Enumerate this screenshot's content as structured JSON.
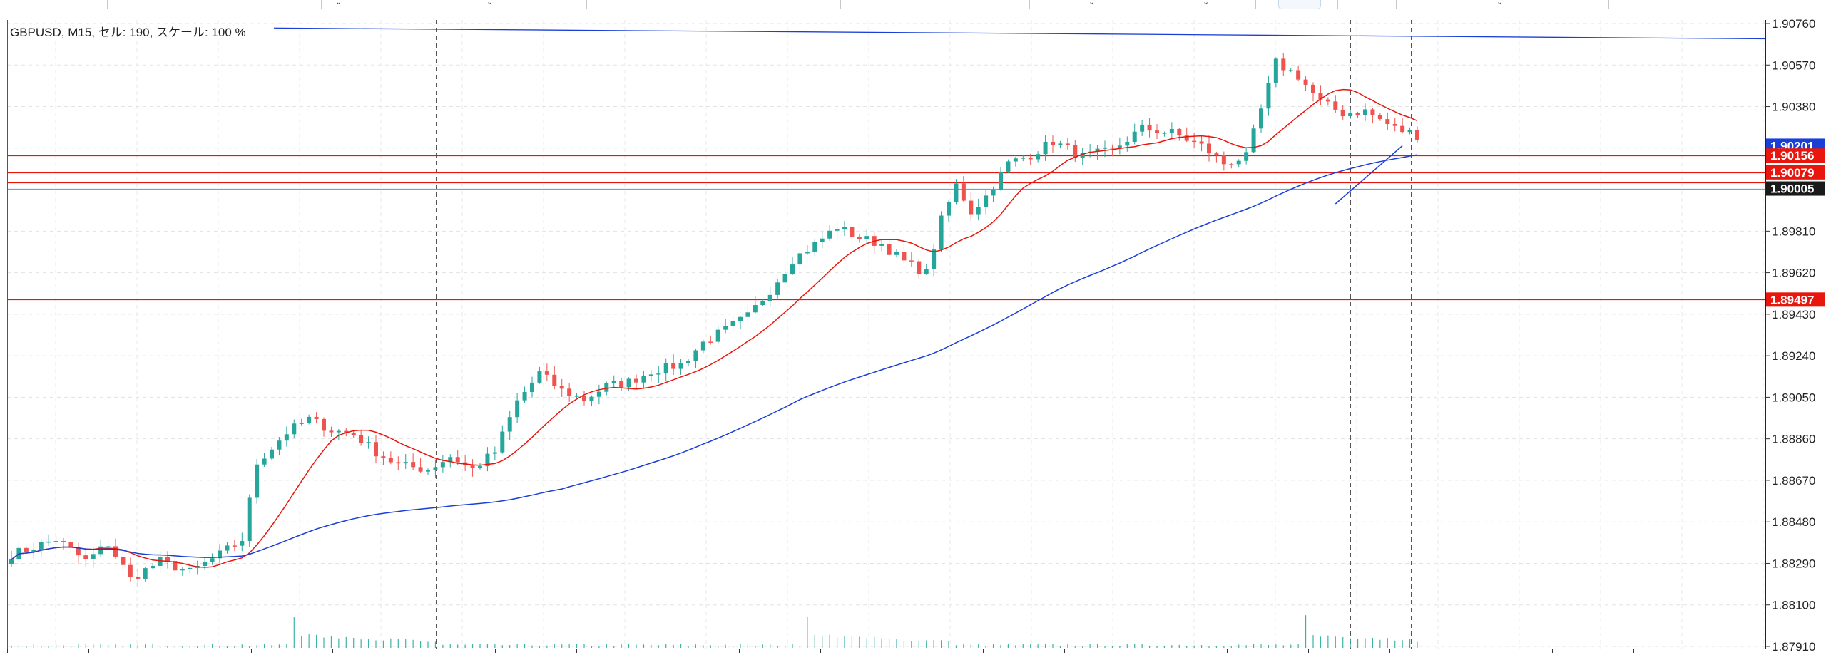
{
  "header": {
    "info": "GBPUSD, M15, セル: 190, スケール: 100 %"
  },
  "chart_data": {
    "type": "candlestick",
    "symbol": "GBPUSD",
    "timeframe": "M15",
    "sell_count": "190",
    "scale": "100 %",
    "ylim": [
      1.8791,
      1.9076
    ],
    "y_ticks": [
      "1.90760",
      "1.90570",
      "1.90380",
      "1.90190",
      "1.90000",
      "1.89810",
      "1.89620",
      "1.89430",
      "1.89240",
      "1.89050",
      "1.88860",
      "1.88670",
      "1.88480",
      "1.88290",
      "1.88100",
      "1.87910"
    ],
    "price_tags": [
      {
        "value": 1.90201,
        "label": "1.90201",
        "color": "#1a3fd6"
      },
      {
        "value": 1.90156,
        "label": "1.90156",
        "color": "#e8160c"
      },
      {
        "value": 1.90079,
        "label": "1.90079",
        "color": "#e8160c"
      },
      {
        "value": 1.90005,
        "label": "1.90005",
        "color": "#1a1a1a"
      },
      {
        "value": 1.89497,
        "label": "1.89497",
        "color": "#e8160c"
      }
    ],
    "horizontal_lines": [
      {
        "value": 1.90156,
        "color": "#e8160c"
      },
      {
        "value": 1.90079,
        "color": "#e8160c"
      },
      {
        "value": 1.90034,
        "color": "#e8160c"
      },
      {
        "value": 1.90005,
        "color": "#6fa0d8"
      },
      {
        "value": 1.89497,
        "color": "#e8160c"
      }
    ],
    "candle_count": 190,
    "candle_colors": {
      "up": "#26a69a",
      "down": "#ef5350"
    },
    "close_anchors": [
      [
        0,
        1.8833
      ],
      [
        6,
        1.884
      ],
      [
        10,
        1.883
      ],
      [
        13,
        1.8838
      ],
      [
        16,
        1.8822
      ],
      [
        20,
        1.883
      ],
      [
        24,
        1.8825
      ],
      [
        28,
        1.8833
      ],
      [
        31,
        1.884
      ],
      [
        33,
        1.8875
      ],
      [
        37,
        1.8889
      ],
      [
        40,
        1.8895
      ],
      [
        43,
        1.889
      ],
      [
        46,
        1.8888
      ],
      [
        49,
        1.888
      ],
      [
        52,
        1.8874
      ],
      [
        56,
        1.8872
      ],
      [
        59,
        1.8878
      ],
      [
        62,
        1.8872
      ],
      [
        65,
        1.888
      ],
      [
        68,
        1.8903
      ],
      [
        71,
        1.8916
      ],
      [
        74,
        1.8908
      ],
      [
        77,
        1.8904
      ],
      [
        80,
        1.891
      ],
      [
        83,
        1.8912
      ],
      [
        86,
        1.8917
      ],
      [
        90,
        1.892
      ],
      [
        93,
        1.893
      ],
      [
        96,
        1.8936
      ],
      [
        99,
        1.8942
      ],
      [
        102,
        1.8954
      ],
      [
        105,
        1.8968
      ],
      [
        108,
        1.8975
      ],
      [
        111,
        1.8983
      ],
      [
        114,
        1.8978
      ],
      [
        117,
        1.8975
      ],
      [
        120,
        1.8967
      ],
      [
        123,
        1.8962
      ],
      [
        125,
        1.8986
      ],
      [
        127,
        1.9002
      ],
      [
        129,
        1.899
      ],
      [
        131,
        1.8997
      ],
      [
        134,
        1.9012
      ],
      [
        137,
        1.9016
      ],
      [
        140,
        1.9022
      ],
      [
        144,
        1.9015
      ],
      [
        148,
        1.9018
      ],
      [
        152,
        1.9028
      ],
      [
        156,
        1.9026
      ],
      [
        160,
        1.902
      ],
      [
        163,
        1.9012
      ],
      [
        166,
        1.9015
      ],
      [
        170,
        1.9058
      ],
      [
        173,
        1.9052
      ],
      [
        176,
        1.904
      ],
      [
        179,
        1.9035
      ],
      [
        182,
        1.9036
      ],
      [
        186,
        1.9028
      ],
      [
        190,
        1.9024
      ]
    ],
    "overlays": [
      {
        "kind": "moving-average",
        "color": "#e8160c",
        "period": 12
      },
      {
        "kind": "moving-average",
        "color": "#1a3fd6",
        "period": 75
      }
    ],
    "blue_line_value_at_left": 1.9074,
    "blue_line_value_at_right": 1.9069,
    "trendline": {
      "color": "#1a3fd6",
      "from": 1.89935,
      "to": 1.90201
    },
    "vertical_separators": 5,
    "volume_color": "#3bb3a5"
  }
}
